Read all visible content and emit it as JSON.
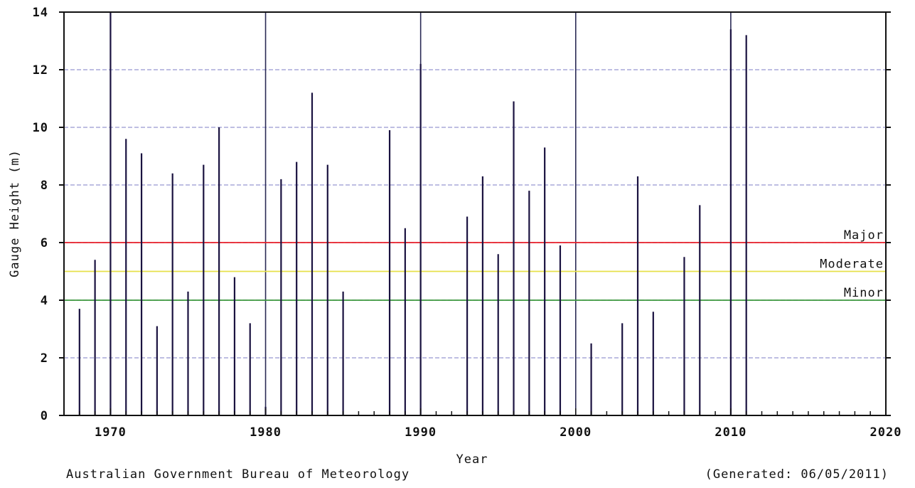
{
  "chart_data": {
    "type": "bar",
    "title": "",
    "xlabel": "Year",
    "ylabel": "Gauge Height (m)",
    "xlim": [
      1967,
      2020
    ],
    "ylim": [
      0,
      14
    ],
    "x_ticks": [
      "1970",
      "1980",
      "1990",
      "2000",
      "2010",
      "2020"
    ],
    "y_ticks": [
      "0",
      "2",
      "4",
      "6",
      "8",
      "10",
      "12",
      "14"
    ],
    "grid": "horizontal dashed at every 2 m; vertical at each decade",
    "series": [
      {
        "x": [
          1968,
          1969,
          1970,
          1971,
          1972,
          1973,
          1974,
          1975,
          1976,
          1977,
          1978,
          1979,
          1980,
          1981,
          1982,
          1983,
          1984,
          1985,
          1988,
          1989,
          1990,
          1993,
          1994,
          1995,
          1996,
          1997,
          1998,
          1999,
          2001,
          2003,
          2004,
          2005,
          2007,
          2008,
          2010,
          2011
        ],
        "values": [
          3.7,
          5.4,
          14.0,
          9.6,
          9.1,
          3.1,
          8.4,
          4.3,
          8.7,
          10.0,
          4.8,
          3.2,
          0.3,
          8.2,
          8.8,
          11.2,
          8.7,
          4.3,
          9.9,
          6.5,
          12.2,
          6.9,
          8.3,
          5.6,
          10.9,
          7.8,
          9.3,
          5.9,
          2.5,
          3.2,
          8.3,
          3.6,
          5.5,
          7.3,
          13.4,
          13.2
        ]
      }
    ],
    "reference_lines": [
      {
        "label": "Major",
        "value": 6,
        "color": "#e8202a"
      },
      {
        "label": "Moderate",
        "value": 5,
        "color": "#e6e04a"
      },
      {
        "label": "Minor",
        "value": 4,
        "color": "#3e9a3e"
      }
    ],
    "bar_color": "#1a1240",
    "grid_color": "#a8a8d8",
    "decade_line_color": "#2a2a55"
  },
  "footer": {
    "source": "Australian Government Bureau of Meteorology",
    "generated": "(Generated: 06/05/2011)"
  }
}
